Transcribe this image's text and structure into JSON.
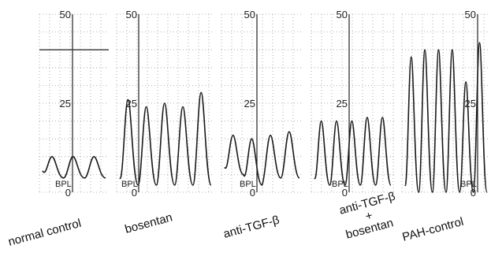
{
  "chart_data": {
    "type": "line",
    "ylim": [
      0,
      50
    ],
    "y_ticks": [
      "50",
      "25",
      "0"
    ],
    "baseline_label": "BPL",
    "panels": [
      {
        "label": "normal control",
        "label_lines": [
          "normal control"
        ],
        "peaks": [
          10,
          10,
          10
        ],
        "troughs": [
          4,
          4,
          4
        ],
        "ref_line": 40
      },
      {
        "label": "bosentan",
        "label_lines": [
          "bosentan"
        ],
        "peaks": [
          26,
          24,
          25,
          24,
          28
        ],
        "troughs": [
          2,
          2,
          2,
          2,
          2
        ]
      },
      {
        "label": "anti-TGF-β",
        "label_lines": [
          "anti-TGF-β"
        ],
        "peaks": [
          16,
          15,
          16,
          17
        ],
        "troughs": [
          5,
          2,
          4,
          4
        ]
      },
      {
        "label": "anti-TGF-β + bosentan",
        "label_lines": [
          "anti-TGF-β",
          "+",
          "bosentan"
        ],
        "peaks": [
          20,
          20,
          20,
          21,
          21
        ],
        "troughs": [
          2,
          2,
          2,
          2,
          2
        ]
      },
      {
        "label": "PAH-control",
        "label_lines": [
          "PAH-control"
        ],
        "peaks": [
          38,
          40,
          40,
          40,
          31,
          42
        ],
        "troughs": [
          0,
          0,
          0,
          0,
          0,
          0
        ]
      }
    ]
  }
}
